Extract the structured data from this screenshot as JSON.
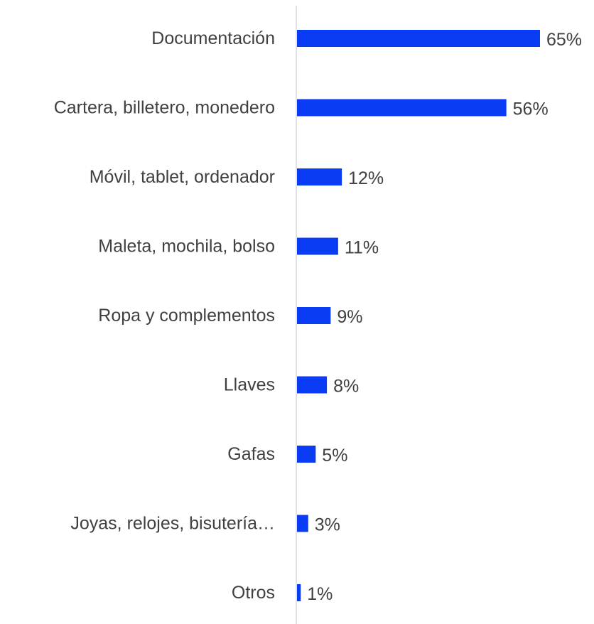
{
  "chart_data": {
    "type": "bar",
    "orientation": "horizontal",
    "categories": [
      "Documentación",
      "Cartera, billetero, monedero",
      "Móvil, tablet, ordenador",
      "Maleta, mochila, bolso",
      "Ropa y complementos",
      "Llaves",
      "Gafas",
      "Joyas, relojes, bisutería…",
      "Otros"
    ],
    "values": [
      65,
      56,
      12,
      11,
      9,
      8,
      5,
      3,
      1
    ],
    "value_labels": [
      "65%",
      "56%",
      "12%",
      "11%",
      "9%",
      "8%",
      "5%",
      "3%",
      "1%"
    ],
    "unit": "%",
    "title": "",
    "xlabel": "",
    "ylabel": "",
    "xlim": [
      0,
      65
    ],
    "grid": false,
    "legend": "none",
    "bar_color": "#0a3cf5",
    "axis_color": "#d9d9d9",
    "text_color": "#404040"
  }
}
